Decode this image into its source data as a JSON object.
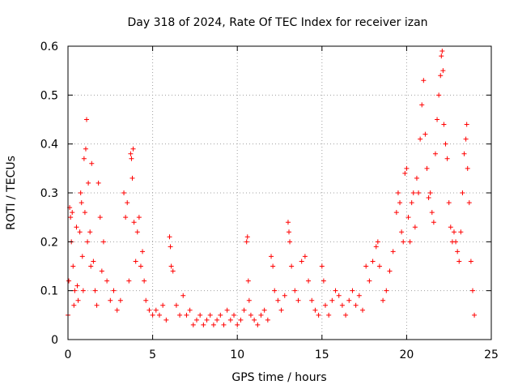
{
  "chart_data": {
    "type": "scatter",
    "title": "Day 318 of 2024, Rate Of TEC Index for receiver izan",
    "xlabel": "GPS time / hours",
    "ylabel": "ROTI / TECUs",
    "xlim": [
      0,
      25
    ],
    "ylim": [
      0,
      0.6
    ],
    "xticks": [
      "0",
      "5",
      "10",
      "15",
      "20",
      "25"
    ],
    "yticks": [
      "0",
      "0.1",
      "0.2",
      "0.3",
      "0.4",
      "0.5",
      "0.6"
    ],
    "grid": true,
    "marker": "+",
    "color": "#ff0000",
    "series": [
      {
        "name": "",
        "points": [
          [
            0.0,
            0.05
          ],
          [
            0.05,
            0.12
          ],
          [
            0.1,
            0.27
          ],
          [
            0.15,
            0.25
          ],
          [
            0.2,
            0.2
          ],
          [
            0.25,
            0.26
          ],
          [
            0.3,
            0.15
          ],
          [
            0.35,
            0.07
          ],
          [
            0.4,
            0.1
          ],
          [
            0.5,
            0.23
          ],
          [
            0.55,
            0.11
          ],
          [
            0.6,
            0.08
          ],
          [
            0.7,
            0.22
          ],
          [
            0.75,
            0.3
          ],
          [
            0.8,
            0.28
          ],
          [
            0.85,
            0.17
          ],
          [
            0.9,
            0.1
          ],
          [
            0.95,
            0.37
          ],
          [
            1.0,
            0.26
          ],
          [
            1.05,
            0.39
          ],
          [
            1.1,
            0.45
          ],
          [
            1.15,
            0.2
          ],
          [
            1.2,
            0.32
          ],
          [
            1.3,
            0.22
          ],
          [
            1.35,
            0.15
          ],
          [
            1.4,
            0.36
          ],
          [
            1.5,
            0.16
          ],
          [
            1.6,
            0.1
          ],
          [
            1.7,
            0.07
          ],
          [
            1.8,
            0.32
          ],
          [
            1.9,
            0.25
          ],
          [
            2.0,
            0.14
          ],
          [
            2.1,
            0.2
          ],
          [
            2.3,
            0.12
          ],
          [
            2.5,
            0.08
          ],
          [
            2.7,
            0.1
          ],
          [
            2.9,
            0.06
          ],
          [
            3.1,
            0.08
          ],
          [
            3.3,
            0.3
          ],
          [
            3.4,
            0.25
          ],
          [
            3.5,
            0.28
          ],
          [
            3.6,
            0.12
          ],
          [
            3.7,
            0.38
          ],
          [
            3.75,
            0.37
          ],
          [
            3.8,
            0.33
          ],
          [
            3.85,
            0.39
          ],
          [
            3.9,
            0.24
          ],
          [
            4.0,
            0.16
          ],
          [
            4.1,
            0.22
          ],
          [
            4.2,
            0.25
          ],
          [
            4.3,
            0.15
          ],
          [
            4.4,
            0.18
          ],
          [
            4.5,
            0.12
          ],
          [
            4.6,
            0.08
          ],
          [
            4.8,
            0.06
          ],
          [
            5.0,
            0.05
          ],
          [
            5.2,
            0.06
          ],
          [
            5.4,
            0.05
          ],
          [
            5.6,
            0.07
          ],
          [
            5.8,
            0.04
          ],
          [
            6.0,
            0.21
          ],
          [
            6.05,
            0.19
          ],
          [
            6.1,
            0.15
          ],
          [
            6.2,
            0.14
          ],
          [
            6.4,
            0.07
          ],
          [
            6.6,
            0.05
          ],
          [
            6.8,
            0.09
          ],
          [
            7.0,
            0.05
          ],
          [
            7.2,
            0.06
          ],
          [
            7.4,
            0.03
          ],
          [
            7.6,
            0.04
          ],
          [
            7.8,
            0.05
          ],
          [
            8.0,
            0.03
          ],
          [
            8.2,
            0.04
          ],
          [
            8.4,
            0.05
          ],
          [
            8.6,
            0.03
          ],
          [
            8.8,
            0.04
          ],
          [
            9.0,
            0.05
          ],
          [
            9.2,
            0.03
          ],
          [
            9.4,
            0.06
          ],
          [
            9.6,
            0.04
          ],
          [
            9.8,
            0.05
          ],
          [
            10.0,
            0.03
          ],
          [
            10.2,
            0.04
          ],
          [
            10.4,
            0.06
          ],
          [
            10.55,
            0.2
          ],
          [
            10.6,
            0.21
          ],
          [
            10.65,
            0.12
          ],
          [
            10.7,
            0.08
          ],
          [
            10.8,
            0.05
          ],
          [
            11.0,
            0.04
          ],
          [
            11.2,
            0.03
          ],
          [
            11.4,
            0.05
          ],
          [
            11.6,
            0.06
          ],
          [
            11.8,
            0.04
          ],
          [
            12.0,
            0.17
          ],
          [
            12.1,
            0.15
          ],
          [
            12.2,
            0.1
          ],
          [
            12.4,
            0.08
          ],
          [
            12.6,
            0.06
          ],
          [
            12.8,
            0.09
          ],
          [
            13.0,
            0.24
          ],
          [
            13.05,
            0.22
          ],
          [
            13.1,
            0.2
          ],
          [
            13.2,
            0.15
          ],
          [
            13.4,
            0.1
          ],
          [
            13.6,
            0.08
          ],
          [
            13.8,
            0.16
          ],
          [
            14.0,
            0.17
          ],
          [
            14.2,
            0.12
          ],
          [
            14.4,
            0.08
          ],
          [
            14.6,
            0.06
          ],
          [
            14.8,
            0.05
          ],
          [
            15.0,
            0.15
          ],
          [
            15.1,
            0.12
          ],
          [
            15.2,
            0.07
          ],
          [
            15.4,
            0.05
          ],
          [
            15.6,
            0.08
          ],
          [
            15.8,
            0.1
          ],
          [
            16.0,
            0.09
          ],
          [
            16.2,
            0.07
          ],
          [
            16.4,
            0.05
          ],
          [
            16.6,
            0.08
          ],
          [
            16.8,
            0.1
          ],
          [
            17.0,
            0.07
          ],
          [
            17.2,
            0.09
          ],
          [
            17.4,
            0.06
          ],
          [
            17.6,
            0.15
          ],
          [
            17.8,
            0.12
          ],
          [
            18.0,
            0.16
          ],
          [
            18.2,
            0.19
          ],
          [
            18.3,
            0.2
          ],
          [
            18.4,
            0.15
          ],
          [
            18.6,
            0.08
          ],
          [
            18.8,
            0.1
          ],
          [
            19.0,
            0.14
          ],
          [
            19.2,
            0.18
          ],
          [
            19.4,
            0.26
          ],
          [
            19.5,
            0.3
          ],
          [
            19.6,
            0.28
          ],
          [
            19.7,
            0.22
          ],
          [
            19.8,
            0.2
          ],
          [
            19.9,
            0.34
          ],
          [
            20.0,
            0.35
          ],
          [
            20.1,
            0.25
          ],
          [
            20.2,
            0.2
          ],
          [
            20.3,
            0.28
          ],
          [
            20.4,
            0.3
          ],
          [
            20.5,
            0.23
          ],
          [
            20.6,
            0.33
          ],
          [
            20.7,
            0.3
          ],
          [
            20.8,
            0.41
          ],
          [
            20.9,
            0.48
          ],
          [
            21.0,
            0.53
          ],
          [
            21.1,
            0.42
          ],
          [
            21.2,
            0.35
          ],
          [
            21.3,
            0.29
          ],
          [
            21.4,
            0.3
          ],
          [
            21.5,
            0.26
          ],
          [
            21.6,
            0.24
          ],
          [
            21.7,
            0.38
          ],
          [
            21.8,
            0.45
          ],
          [
            21.9,
            0.5
          ],
          [
            22.0,
            0.54
          ],
          [
            22.05,
            0.58
          ],
          [
            22.1,
            0.59
          ],
          [
            22.15,
            0.55
          ],
          [
            22.2,
            0.44
          ],
          [
            22.3,
            0.4
          ],
          [
            22.4,
            0.37
          ],
          [
            22.5,
            0.28
          ],
          [
            22.6,
            0.23
          ],
          [
            22.7,
            0.2
          ],
          [
            22.8,
            0.22
          ],
          [
            22.9,
            0.2
          ],
          [
            23.0,
            0.18
          ],
          [
            23.1,
            0.16
          ],
          [
            23.2,
            0.22
          ],
          [
            23.3,
            0.3
          ],
          [
            23.4,
            0.38
          ],
          [
            23.5,
            0.41
          ],
          [
            23.55,
            0.44
          ],
          [
            23.6,
            0.35
          ],
          [
            23.7,
            0.28
          ],
          [
            23.8,
            0.16
          ],
          [
            23.9,
            0.1
          ],
          [
            24.0,
            0.05
          ]
        ]
      }
    ]
  }
}
